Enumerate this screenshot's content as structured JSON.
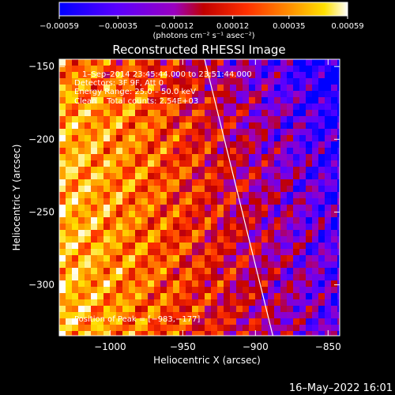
{
  "chart_data": {
    "type": "heatmap",
    "title": "Reconstructed RHESSI Image",
    "xlabel": "Heliocentric X (arcsec)",
    "ylabel": "Heliocentric Y (arcsec)",
    "xlim": [
      -1035,
      -842
    ],
    "ylim": [
      -335,
      -145
    ],
    "x_ticks": [
      "−1000",
      "−950",
      "−900",
      "−850"
    ],
    "x_tick_values": [
      -1000,
      -950,
      -900,
      -850
    ],
    "y_ticks": [
      "−150",
      "−200",
      "−250",
      "−300"
    ],
    "y_tick_values": [
      -150,
      -200,
      -250,
      -300
    ],
    "colorbar": {
      "min": -0.00059,
      "max": 0.00059,
      "ticks": [
        "−0.00059",
        "−0.00035",
        "−0.00012",
        "0.00012",
        "0.00035",
        "0.00059"
      ],
      "tick_values": [
        -0.00059,
        -0.00035,
        -0.00012,
        0.00012,
        0.00035,
        0.00059
      ],
      "units_label": "(photons cm⁻² s⁻¹ asec⁻²)",
      "colors": [
        "#0000ff",
        "#5a00ff",
        "#9a00c0",
        "#c00000",
        "#ff3000",
        "#ff9000",
        "#ffe000",
        "#ffffff"
      ]
    },
    "peak_xy": [
      -983,
      -177
    ],
    "limb_line": {
      "x": [
        -935,
        -888
      ],
      "y": [
        -145,
        -335
      ]
    },
    "annotations": [
      "1–Sep–2014 23:45:44.000 to 23:51:44.000",
      "Detectors: 3F 9F, Att 0",
      "Energy Range: 25.0 – 50.0 keV",
      "Clean    Total counts: 2.54E+03",
      "Position of Peak = [−983,−177]"
    ],
    "grid": false
  },
  "footer_timestamp": "16–May–2022 16:01"
}
